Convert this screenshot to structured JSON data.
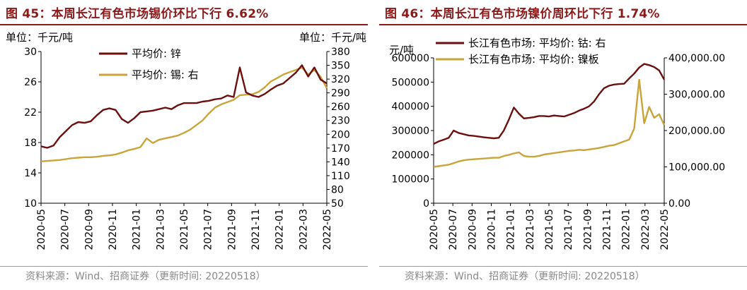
{
  "chart_data": [
    {
      "type": "line",
      "title": "图 45：本周长江有色市场锡价环比下行 6.62%",
      "y_left_unit": "单位：千元/吨",
      "y_right_unit": "单位：千元/吨",
      "y_left_lim": [
        10,
        30
      ],
      "y_left_ticks": [
        10,
        14,
        18,
        22,
        26,
        30
      ],
      "y_right_lim": [
        50,
        380
      ],
      "y_right_ticks": [
        50,
        80,
        110,
        140,
        170,
        200,
        230,
        260,
        290,
        320,
        350,
        380
      ],
      "x_ticks": [
        "2020-05",
        "2020-07",
        "2020-09",
        "2020-11",
        "2021-01",
        "2021-03",
        "2021-05",
        "2021-07",
        "2021-09",
        "2021-11",
        "2022-01",
        "2022-03",
        "2022-05"
      ],
      "legend_position": "top-left",
      "source": "资料来源：Wind、招商证券（更新时间: 20220518）",
      "series": [
        {
          "name": "平均价: 锌",
          "axis": "left",
          "color": "#6b0f0f",
          "values": [
            17.5,
            17.3,
            17.6,
            18.7,
            19.5,
            20.3,
            20.7,
            20.6,
            20.8,
            21.6,
            22.3,
            22.5,
            22.3,
            21.1,
            20.6,
            21.2,
            22.0,
            22.1,
            22.2,
            22.4,
            22.6,
            22.4,
            22.9,
            23.2,
            23.2,
            23.2,
            23.4,
            23.5,
            23.7,
            23.8,
            24.2,
            24.0,
            27.9,
            24.6,
            24.2,
            24.0,
            24.4,
            25.0,
            25.5,
            25.8,
            26.5,
            27.2,
            28.2,
            26.7,
            27.9,
            26.3,
            25.8
          ]
        },
        {
          "name": "平均价: 锡: 右",
          "axis": "right",
          "color": "#c9a43a",
          "values": [
            141,
            142,
            143,
            144,
            146,
            148,
            149,
            150,
            150,
            151,
            153,
            154,
            156,
            160,
            165,
            168,
            172,
            191,
            181,
            188,
            191,
            194,
            197,
            203,
            210,
            220,
            230,
            245,
            258,
            265,
            270,
            275,
            285,
            286,
            287,
            292,
            302,
            315,
            322,
            330,
            335,
            340,
            345,
            330,
            340,
            325,
            300
          ]
        }
      ]
    },
    {
      "type": "line",
      "title": "图 46：本周长江有色市场镍价周环比下行 1.74%",
      "y_left_unit": "元/吨",
      "y_left_lim": [
        0,
        600000
      ],
      "y_left_ticks": [
        0,
        100000,
        200000,
        300000,
        400000,
        500000,
        600000
      ],
      "y_right_lim": [
        0,
        400000
      ],
      "y_right_ticks": [
        "0.00",
        "100,000.00",
        "200,000.00",
        "300,000.00",
        "400,000.00"
      ],
      "y_right_tick_values": [
        0,
        100000,
        200000,
        300000,
        400000
      ],
      "x_ticks": [
        "2020-05",
        "2020-07",
        "2020-09",
        "2020-11",
        "2021-01",
        "2021-03",
        "2021-05",
        "2021-07",
        "2021-09",
        "2021-11",
        "2022-01",
        "2022-03",
        "2022-05"
      ],
      "legend_position": "top-left",
      "source": "资料来源：Wind、招商证券（更新时间: 20220518）",
      "series": [
        {
          "name": "长江有色市场: 平均价: 钴: 右",
          "axis": "left",
          "color": "#6b0f0f",
          "values": [
            245000,
            255000,
            262000,
            270000,
            300000,
            290000,
            285000,
            280000,
            278000,
            275000,
            272000,
            270000,
            268000,
            270000,
            300000,
            345000,
            395000,
            370000,
            350000,
            352000,
            355000,
            360000,
            360000,
            358000,
            362000,
            360000,
            358000,
            365000,
            372000,
            382000,
            390000,
            400000,
            420000,
            450000,
            475000,
            485000,
            490000,
            492000,
            493000,
            515000,
            535000,
            560000,
            575000,
            570000,
            562000,
            548000,
            510000
          ]
        },
        {
          "name": "长江有色市场: 平均价: 镍板",
          "axis": "right",
          "color": "#c9a43a",
          "values": [
            100000,
            102000,
            104000,
            106000,
            110000,
            115000,
            118000,
            120000,
            121000,
            122000,
            123000,
            124000,
            125000,
            125000,
            130000,
            133000,
            137000,
            140000,
            130000,
            128000,
            128000,
            130000,
            134000,
            136000,
            138000,
            140000,
            142000,
            144000,
            145000,
            147000,
            146000,
            148000,
            150000,
            152000,
            155000,
            158000,
            160000,
            165000,
            170000,
            175000,
            205000,
            340000,
            220000,
            265000,
            235000,
            245000,
            215000
          ]
        }
      ]
    }
  ]
}
